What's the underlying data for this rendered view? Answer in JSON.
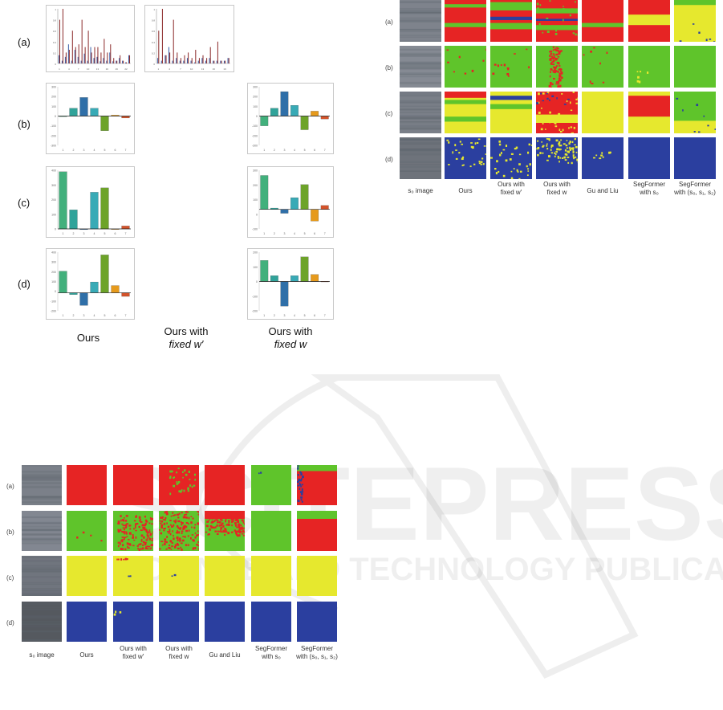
{
  "left_figure": {
    "row_labels": [
      "(a)",
      "(b)",
      "(c)",
      "(d)"
    ],
    "captions": {
      "ours": "Ours",
      "fixed_w_prime_l1": "Ours with",
      "fixed_w_prime_l2": "fixed w′",
      "fixed_w_l1": "Ours with",
      "fixed_w_l2": "fixed w"
    }
  },
  "chart_data": [
    {
      "type": "bar",
      "panel": "(a) Ours",
      "categories": [
        "1",
        "2",
        "3",
        "4",
        "5",
        "6",
        "7",
        "8",
        "9",
        "10",
        "11",
        "12",
        "13",
        "14",
        "15",
        "16",
        "17",
        "18",
        "19",
        "20",
        "21",
        "22",
        "23"
      ],
      "series": [
        {
          "values": [
            0.15,
            0.05,
            0.12,
            0.35,
            0.05,
            0.25,
            0.12,
            0.05,
            0.18,
            0.05,
            0.3,
            0.1,
            0.12,
            0.04,
            0.1,
            0.05,
            0.2,
            0.04,
            0.05,
            0.1,
            0.05,
            0.02,
            0.15
          ]
        },
        {
          "values": [
            0.8,
            1.0,
            0.2,
            0.25,
            0.6,
            0.3,
            0.35,
            0.8,
            0.3,
            0.6,
            0.2,
            0.3,
            0.3,
            0.2,
            0.45,
            0.2,
            0.35,
            0.1,
            0.05,
            0.15,
            0.05,
            0.02,
            0.15
          ]
        }
      ],
      "color_a": "#3a5ea8",
      "color_b": "#8b2a2a"
    },
    {
      "type": "bar",
      "panel": "(a) fixed w",
      "categories": [
        "1",
        "2",
        "3",
        "4",
        "5",
        "6",
        "7",
        "8",
        "9",
        "10",
        "11",
        "12",
        "13",
        "14",
        "15",
        "16",
        "17",
        "18",
        "19",
        "20"
      ],
      "series": [
        {
          "values": [
            0.1,
            0.05,
            0.15,
            0.3,
            0.05,
            0.1,
            0.05,
            0.05,
            0.1,
            0.05,
            0.02,
            0.05,
            0.1,
            0.05,
            0.1,
            0.05,
            0.05,
            0.05,
            0.05,
            0.1
          ]
        },
        {
          "values": [
            0.6,
            1.0,
            0.15,
            0.2,
            0.8,
            0.2,
            0.1,
            0.15,
            0.2,
            0.1,
            0.25,
            0.1,
            0.15,
            0.1,
            0.3,
            0.05,
            0.4,
            0.05,
            0.05,
            0.1
          ]
        }
      ],
      "color_a": "#3a5ea8",
      "color_b": "#8b2a2a"
    },
    {
      "type": "bar",
      "panel": "(b) Ours",
      "categories": [
        "1",
        "2",
        "3",
        "4",
        "5",
        "6",
        "7"
      ],
      "values": [
        -2,
        80,
        190,
        80,
        -150,
        10,
        -20
      ],
      "ylim": [
        -300,
        300
      ],
      "yticks": [
        "300",
        "200",
        "100",
        "0",
        "-100",
        "-200",
        "-300"
      ]
    },
    {
      "type": "bar",
      "panel": "(b) fixed w",
      "categories": [
        "1",
        "2",
        "3",
        "4",
        "5",
        "6",
        "7"
      ],
      "values": [
        -100,
        80,
        250,
        110,
        -140,
        50,
        -30
      ],
      "ylim": [
        -300,
        300
      ],
      "yticks": [
        "300",
        "200",
        "100",
        "0",
        "-100",
        "-200",
        "-300"
      ]
    },
    {
      "type": "bar",
      "panel": "(c) Ours",
      "categories": [
        "1",
        "2",
        "3",
        "4",
        "5",
        "6",
        "7"
      ],
      "values": [
        390,
        130,
        -5,
        250,
        280,
        0,
        20
      ],
      "ylim": [
        0,
        400
      ],
      "yticks": [
        "400",
        "300",
        "200",
        "100",
        "0"
      ]
    },
    {
      "type": "bar",
      "panel": "(c) fixed w",
      "categories": [
        "1",
        "2",
        "3",
        "4",
        "5",
        "6",
        "7"
      ],
      "values": [
        260,
        10,
        -30,
        90,
        190,
        -90,
        30
      ],
      "ylim": [
        -150,
        300
      ],
      "yticks": [
        "300",
        "200",
        "100",
        "0",
        "-100"
      ]
    },
    {
      "type": "bar",
      "panel": "(d) Ours",
      "categories": [
        "1",
        "2",
        "3",
        "4",
        "5",
        "6",
        "7"
      ],
      "values": [
        240,
        -20,
        -140,
        120,
        420,
        80,
        -40
      ],
      "ylim": [
        -200,
        450
      ],
      "yticks": [
        "400",
        "300",
        "200",
        "100",
        "0",
        "-100",
        "-200"
      ]
    },
    {
      "type": "bar",
      "panel": "(d) fixed w",
      "categories": [
        "1",
        "2",
        "3",
        "4",
        "5",
        "6",
        "7"
      ],
      "values": [
        180,
        50,
        -210,
        50,
        210,
        60,
        2
      ],
      "ylim": [
        -250,
        250
      ],
      "yticks": [
        "200",
        "100",
        "0",
        "-100",
        "-200"
      ]
    }
  ],
  "bar_colors": [
    "#2e7d88",
    "#42b07c",
    "#30a39a",
    "#2f6fa8",
    "#38aab6",
    "#6da32a",
    "#e69a1c",
    "#d4532a"
  ],
  "bottom_left_figure": {
    "row_labels": [
      "(a)",
      "(b)",
      "(c)",
      "(d)"
    ],
    "col_captions": [
      [
        "s₀ image"
      ],
      [
        "Ours"
      ],
      [
        "Ours with",
        "fixed w′"
      ],
      [
        "Ours with",
        "fixed w"
      ],
      [
        "Gu and Liu"
      ],
      [
        "SegFormer",
        "with s₀"
      ],
      [
        "SegFormer",
        "with (s₀, s₁, s₂)"
      ]
    ]
  },
  "top_right_figure": {
    "row_labels": [
      "(a)",
      "(b)",
      "(c)",
      "(d)"
    ],
    "col_captions": [
      [
        "s₀ image"
      ],
      [
        "Ours"
      ],
      [
        "Ours with",
        "fixed w′"
      ],
      [
        "Ours with",
        "fixed w"
      ],
      [
        "Gu and Liu"
      ],
      [
        "SegFormer",
        "with s₀"
      ],
      [
        "SegFormer",
        "with (s₀, s₁, s₂)"
      ]
    ]
  },
  "watermark": {
    "text1": "SCITEPRESS",
    "text2": "SCIENCE AND TECHNOLOGY PUBLICATIONS"
  },
  "colors": {
    "red": "#e62424",
    "green": "#5fc42b",
    "yellow": "#e6e82e",
    "blue": "#2b3f9f",
    "gray": "#767c85"
  }
}
